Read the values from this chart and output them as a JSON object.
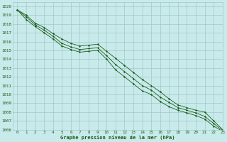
{
  "title": "Graphe pression niveau de la mer (hPa)",
  "bg_color": "#c8eaea",
  "grid_color": "#a0c8c8",
  "line_color": "#1a5c1a",
  "xlim": [
    -0.5,
    23
  ],
  "ylim": [
    1006,
    1020.5
  ],
  "xticks": [
    0,
    1,
    2,
    3,
    4,
    5,
    6,
    7,
    8,
    9,
    10,
    11,
    12,
    13,
    14,
    15,
    16,
    17,
    18,
    19,
    20,
    21,
    22,
    23
  ],
  "yticks": [
    1006,
    1007,
    1008,
    1009,
    1010,
    1011,
    1012,
    1013,
    1014,
    1015,
    1016,
    1017,
    1018,
    1019,
    1020
  ],
  "series": [
    [
      1019.6,
      1019.0,
      1018.1,
      1017.6,
      1016.9,
      1016.3,
      1015.8,
      1015.5,
      1015.6,
      1015.7,
      1014.9,
      1014.1,
      1013.3,
      1012.5,
      1011.7,
      1011.0,
      1010.3,
      1009.5,
      1008.8,
      1008.5,
      1008.2,
      1008.0,
      1007.0,
      1006.0
    ],
    [
      1019.6,
      1018.8,
      1017.9,
      1017.3,
      1016.6,
      1015.8,
      1015.4,
      1015.1,
      1015.2,
      1015.3,
      1014.4,
      1013.4,
      1012.6,
      1011.8,
      1011.0,
      1010.5,
      1009.7,
      1009.1,
      1008.5,
      1008.2,
      1007.9,
      1007.5,
      1006.7,
      1005.9
    ],
    [
      1019.6,
      1018.5,
      1017.7,
      1017.0,
      1016.3,
      1015.5,
      1015.1,
      1014.8,
      1014.9,
      1015.0,
      1014.0,
      1012.8,
      1012.0,
      1011.2,
      1010.4,
      1010.0,
      1009.2,
      1008.6,
      1008.2,
      1007.9,
      1007.6,
      1007.2,
      1006.4,
      1005.8
    ]
  ]
}
